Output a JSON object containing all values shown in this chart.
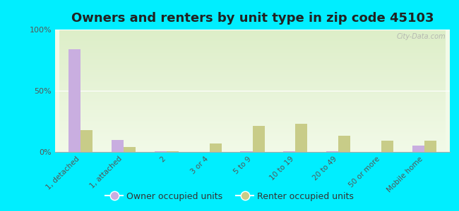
{
  "title": "Owners and renters by unit type in zip code 45103",
  "categories": [
    "1, detached",
    "1, attached",
    "2",
    "3 or 4",
    "5 to 9",
    "10 to 19",
    "20 to 49",
    "50 or more",
    "Mobile home"
  ],
  "owner_values": [
    84,
    10,
    0.5,
    0.0,
    0.5,
    0.5,
    0.5,
    0.0,
    5
  ],
  "renter_values": [
    18,
    4,
    0.5,
    7,
    21,
    23,
    13,
    9,
    9
  ],
  "owner_color": "#c9aee0",
  "renter_color": "#c8cc88",
  "background_color": "#00eeff",
  "plot_bg_color_top": "#ddeec8",
  "plot_bg_color_bottom": "#f2fae8",
  "ylim": [
    0,
    100
  ],
  "yticks": [
    0,
    50,
    100
  ],
  "yticklabels": [
    "0%",
    "50%",
    "100%"
  ],
  "legend_owner": "Owner occupied units",
  "legend_renter": "Renter occupied units",
  "title_fontsize": 13,
  "watermark": "City-Data.com"
}
